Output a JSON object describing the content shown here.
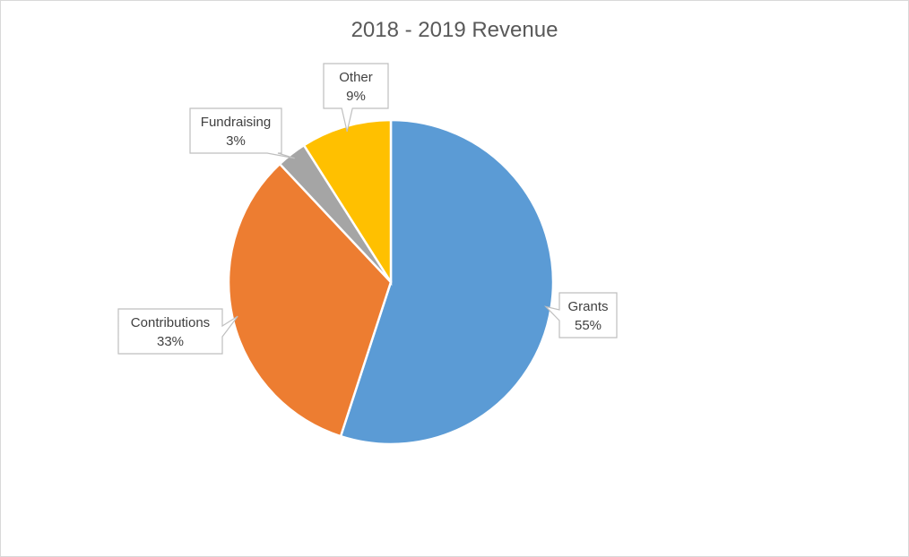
{
  "chart_data": {
    "type": "pie",
    "title": "2018 - 2019 Revenue",
    "slices": [
      {
        "label": "Grants",
        "percent_label": "55%",
        "value": 55,
        "color": "#5b9bd5"
      },
      {
        "label": "Contributions",
        "percent_label": "33%",
        "value": 33,
        "color": "#ed7d31"
      },
      {
        "label": "Fundraising",
        "percent_label": "3%",
        "value": 3,
        "color": "#a5a5a5"
      },
      {
        "label": "Other",
        "percent_label": "9%",
        "value": 9,
        "color": "#ffc000"
      }
    ],
    "start_angle_deg": 0,
    "direction": "clockwise",
    "legend": "none",
    "data_labels": "category and percentage in callouts"
  }
}
